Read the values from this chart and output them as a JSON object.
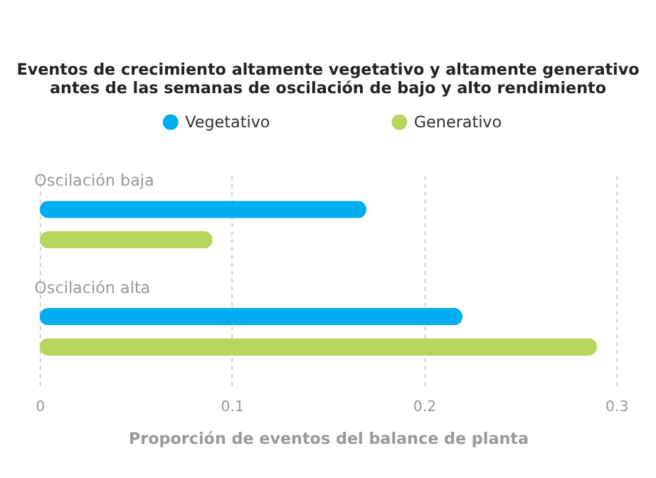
{
  "chart_data": {
    "type": "bar",
    "orientation": "horizontal",
    "title": "Eventos de crecimiento altamente vegetativo y altamente generativo\nantes de las semanas de oscilación de bajo y alto rendimiento",
    "xlabel": "Proporción de eventos del balance de planta",
    "categories": [
      "Oscilación baja",
      "Oscilación alta"
    ],
    "series": [
      {
        "name": "Vegetativo",
        "color": "#00aeef",
        "values": [
          0.17,
          0.22
        ]
      },
      {
        "name": "Generativo",
        "color": "#b8d65e",
        "values": [
          0.09,
          0.29
        ]
      }
    ],
    "xlim": [
      0,
      0.3
    ],
    "xticks": [
      0,
      0.1,
      0.2,
      0.3
    ],
    "grid": "x",
    "legend": "top"
  }
}
